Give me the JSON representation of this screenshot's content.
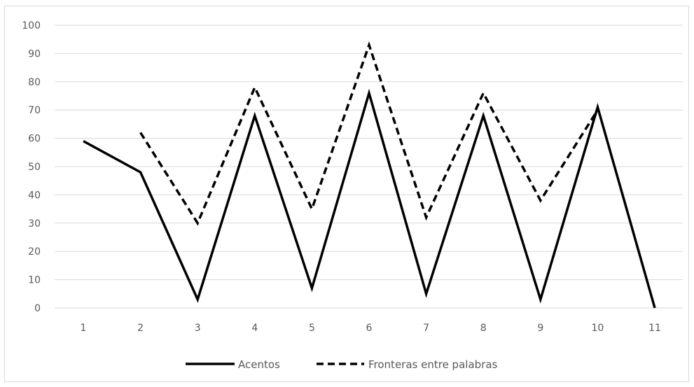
{
  "chart_data": {
    "type": "line",
    "categories": [
      "1",
      "2",
      "3",
      "4",
      "5",
      "6",
      "7",
      "8",
      "9",
      "10",
      "11"
    ],
    "ylim": [
      0,
      100
    ],
    "yticks": [
      0,
      10,
      20,
      30,
      40,
      50,
      60,
      70,
      80,
      90,
      100
    ],
    "grid": true,
    "legend_position": "bottom",
    "series": [
      {
        "name": "Acentos",
        "style": "solid",
        "color": "#000000",
        "values": [
          59,
          48,
          3,
          68,
          7,
          76,
          5,
          68,
          3,
          71,
          0
        ]
      },
      {
        "name": "Fronteras entre palabras",
        "style": "dashed",
        "color": "#000000",
        "values": [
          null,
          62,
          30,
          78,
          35,
          93,
          32,
          76,
          38,
          70,
          null
        ]
      }
    ]
  }
}
